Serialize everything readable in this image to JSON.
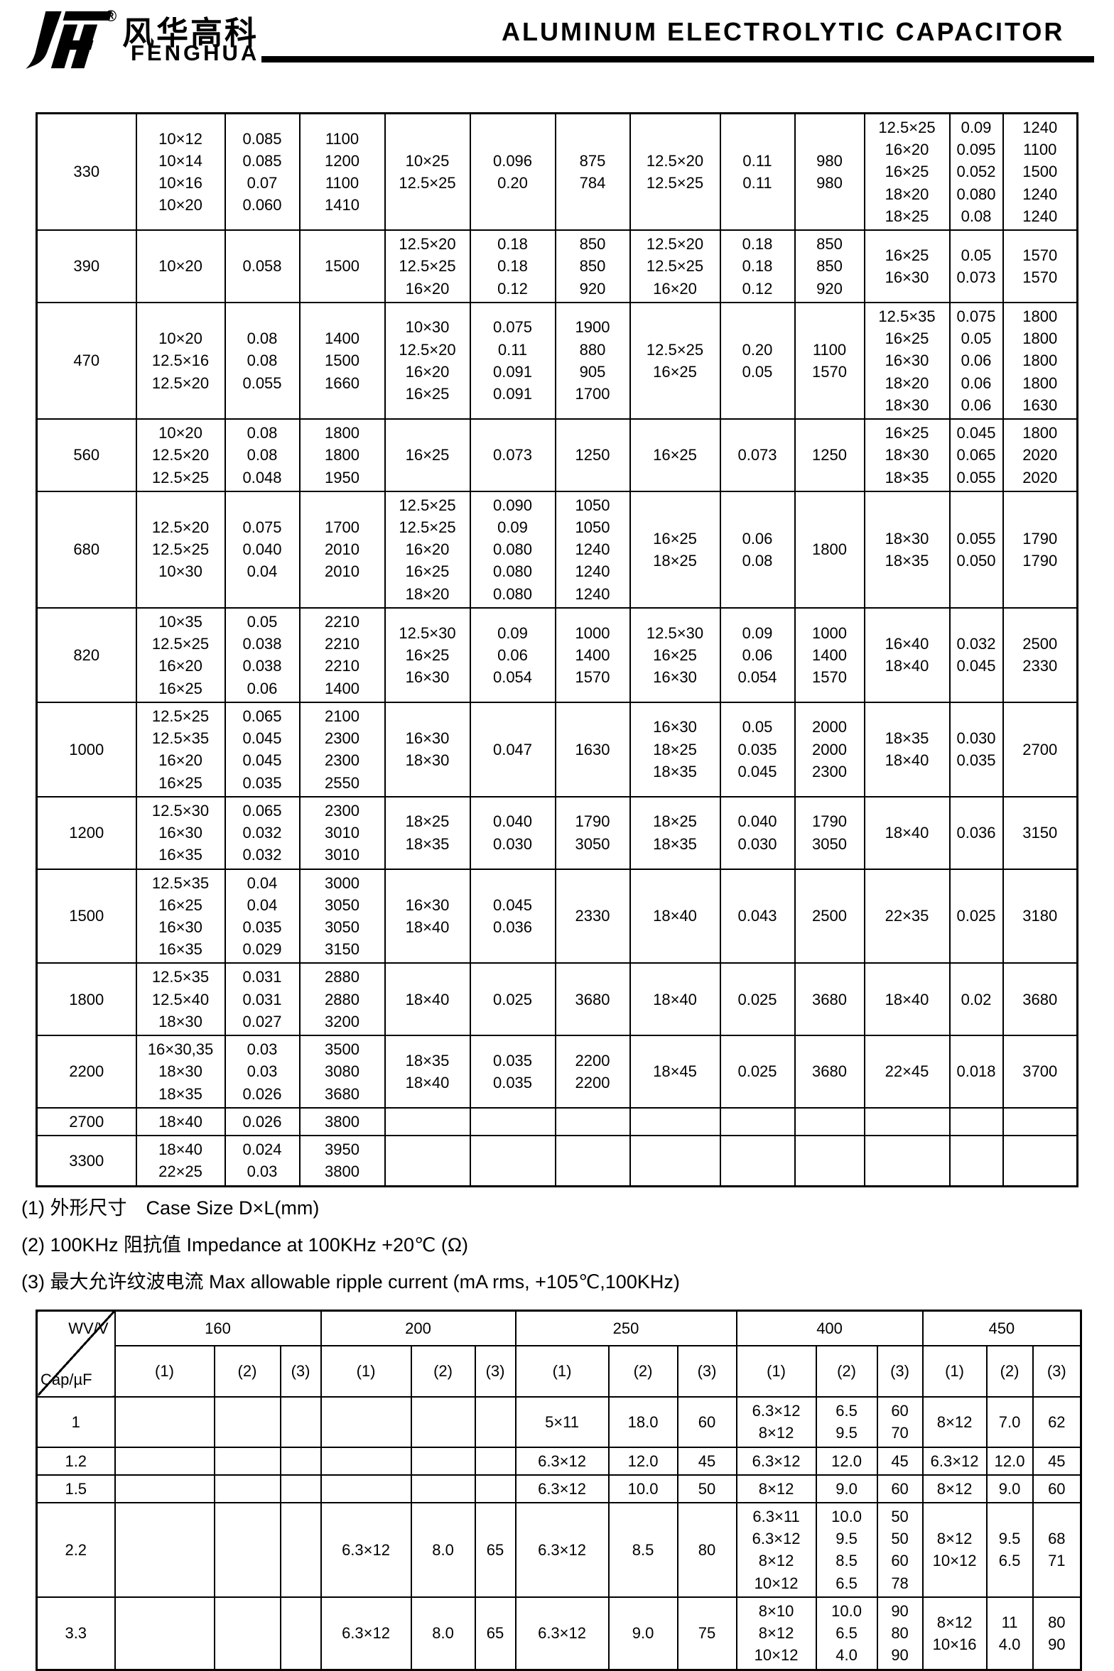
{
  "header": {
    "logo_cn": "风华高科",
    "logo_reg": "®",
    "logo_en": "FENGHUA",
    "title": "ALUMINUM ELECTROLYTIC CAPACITOR"
  },
  "table1": {
    "rows": [
      {
        "cells": [
          "330",
          "10×12\n10×14\n10×16\n10×20",
          "0.085\n0.085\n0.07\n0.060",
          "1100\n1200\n1100\n1410",
          "10×25\n12.5×25",
          "0.096\n0.20",
          "875\n784",
          "12.5×20\n12.5×25",
          "0.11\n0.11",
          "980\n980",
          "12.5×25\n16×20\n16×25\n18×20\n18×25",
          "0.09\n0.095\n0.052\n0.080\n0.08",
          "1240\n1100\n1500\n1240\n1240"
        ]
      },
      {
        "cells": [
          "390",
          "10×20",
          "0.058",
          "1500",
          "12.5×20\n12.5×25\n16×20",
          "0.18\n0.18\n0.12",
          "850\n850\n920",
          "12.5×20\n12.5×25\n16×20",
          "0.18\n0.18\n0.12",
          "850\n850\n920",
          "16×25\n16×30",
          "0.05\n0.073",
          "1570\n1570"
        ]
      },
      {
        "cells": [
          "470",
          "10×20\n12.5×16\n12.5×20",
          "0.08\n0.08\n0.055",
          "1400\n1500\n1660",
          "10×30\n12.5×20\n16×20\n16×25",
          "0.075\n0.11\n0.091\n0.091",
          "1900\n880\n905\n1700",
          "12.5×25\n16×25",
          "0.20\n0.05",
          "1100\n1570",
          "12.5×35\n16×25\n16×30\n18×20\n18×30",
          "0.075\n0.05\n0.06\n0.06\n0.06",
          "1800\n1800\n1800\n1800\n1630"
        ]
      },
      {
        "cells": [
          "560",
          "10×20\n12.5×20\n12.5×25",
          "0.08\n0.08\n0.048",
          "1800\n1800\n1950",
          "16×25",
          "0.073",
          "1250",
          "16×25",
          "0.073",
          "1250",
          "16×25\n18×30\n18×35",
          "0.045\n0.065\n0.055",
          "1800\n2020\n2020"
        ]
      },
      {
        "cells": [
          "680",
          "12.5×20\n12.5×25\n10×30",
          "0.075\n0.040\n0.04",
          "1700\n2010\n2010",
          "12.5×25\n12.5×25\n16×20\n16×25\n18×20",
          "0.090\n0.09\n0.080\n0.080\n0.080",
          "1050\n1050\n1240\n1240\n1240",
          "16×25\n18×25",
          "0.06\n0.08",
          "1800",
          "18×30\n18×35",
          "0.055\n0.050",
          "1790\n1790"
        ]
      },
      {
        "cells": [
          "820",
          "10×35\n12.5×25\n16×20\n16×25",
          "0.05\n0.038\n0.038\n0.06",
          "2210\n2210\n2210\n1400",
          "12.5×30\n16×25\n16×30",
          "0.09\n0.06\n0.054",
          "1000\n1400\n1570",
          "12.5×30\n16×25\n16×30",
          "0.09\n0.06\n0.054",
          "1000\n1400\n1570",
          "16×40\n18×40",
          "0.032\n0.045",
          "2500\n2330"
        ]
      },
      {
        "cells": [
          "1000",
          "12.5×25\n12.5×35\n16×20\n16×25",
          "0.065\n0.045\n0.045\n0.035",
          "2100\n2300\n2300\n2550",
          "16×30\n18×30",
          "0.047",
          "1630",
          "16×30\n18×25\n18×35",
          "0.05\n0.035\n0.045",
          "2000\n2000\n2300",
          "18×35\n18×40",
          "0.030\n0.035",
          "2700"
        ]
      },
      {
        "cells": [
          "1200",
          "12.5×30\n16×30\n16×35",
          "0.065\n0.032\n0.032",
          "2300\n3010\n3010",
          "18×25\n18×35",
          "0.040\n0.030",
          "1790\n3050",
          "18×25\n18×35",
          "0.040\n0.030",
          "1790\n3050",
          "18×40",
          "0.036",
          "3150"
        ]
      },
      {
        "cells": [
          "1500",
          "12.5×35\n16×25\n16×30\n16×35",
          "0.04\n0.04\n0.035\n0.029",
          "3000\n3050\n3050\n3150",
          "16×30\n18×40",
          "0.045\n0.036",
          "2330",
          "18×40",
          "0.043",
          "2500",
          "22×35",
          "0.025",
          "3180"
        ]
      },
      {
        "cells": [
          "1800",
          "12.5×35\n12.5×40\n18×30",
          "0.031\n0.031\n0.027",
          "2880\n2880\n3200",
          "18×40",
          "0.025",
          "3680",
          "18×40",
          "0.025",
          "3680",
          "18×40",
          "0.02",
          "3680"
        ]
      },
      {
        "cells": [
          "2200",
          "16×30,35\n18×30\n18×35",
          "0.03\n0.03\n0.026",
          "3500\n3080\n3680",
          "18×35\n18×40",
          "0.035\n0.035",
          "2200\n2200",
          "18×45",
          "0.025",
          "3680",
          "22×45",
          "0.018",
          "3700"
        ]
      },
      {
        "cells": [
          "2700",
          "18×40",
          "0.026",
          "3800",
          "",
          "",
          "",
          "",
          "",
          "",
          "",
          "",
          ""
        ]
      },
      {
        "cells": [
          "3300",
          "18×40\n22×25",
          "0.024\n0.03",
          "3950\n3800",
          "",
          "",
          "",
          "",
          "",
          "",
          "",
          "",
          ""
        ]
      }
    ]
  },
  "notes": [
    "(1) 外形尺寸　Case Size D×L(mm)",
    "(2) 100KHz 阻抗值 Impedance at 100KHz +20℃ (Ω)",
    "(3) 最大允许纹波电流 Max allowable ripple current (mA rms, +105℃,100KHz)"
  ],
  "table2": {
    "corner_top": "WV/V",
    "corner_bottom": "Cap/µF",
    "groups": [
      "160",
      "200",
      "250",
      "400",
      "450"
    ],
    "subheaders": [
      "(1)",
      "(2)",
      "(3)"
    ],
    "rows": [
      {
        "cap": "1",
        "cells": [
          "",
          "",
          "",
          "",
          "",
          "",
          "5×11",
          "18.0",
          "60",
          "6.3×12\n8×12",
          "6.5\n9.5",
          "60\n70",
          "8×12",
          "7.0",
          "62"
        ]
      },
      {
        "cap": "1.2",
        "cells": [
          "",
          "",
          "",
          "",
          "",
          "",
          "6.3×12",
          "12.0",
          "45",
          "6.3×12",
          "12.0",
          "45",
          "6.3×12",
          "12.0",
          "45"
        ]
      },
      {
        "cap": "1.5",
        "cells": [
          "",
          "",
          "",
          "",
          "",
          "",
          "6.3×12",
          "10.0",
          "50",
          "8×12",
          "9.0",
          "60",
          "8×12",
          "9.0",
          "60"
        ]
      },
      {
        "cap": "2.2",
        "cells": [
          "",
          "",
          "",
          "6.3×12",
          "8.0",
          "65",
          "6.3×12",
          "8.5",
          "80",
          "6.3×11\n6.3×12\n8×12\n10×12",
          "10.0\n9.5\n8.5\n6.5",
          "50\n50\n60\n78",
          "8×12\n10×12",
          "9.5\n6.5",
          "68\n71"
        ]
      },
      {
        "cap": "3.3",
        "cells": [
          "",
          "",
          "",
          "6.3×12",
          "8.0",
          "65",
          "6.3×12",
          "9.0",
          "75",
          "8×10\n8×12\n10×12",
          "10.0\n6.5\n4.0",
          "90\n80\n90",
          "8×12\n10×16",
          "11\n4.0",
          "80\n90"
        ]
      }
    ]
  }
}
